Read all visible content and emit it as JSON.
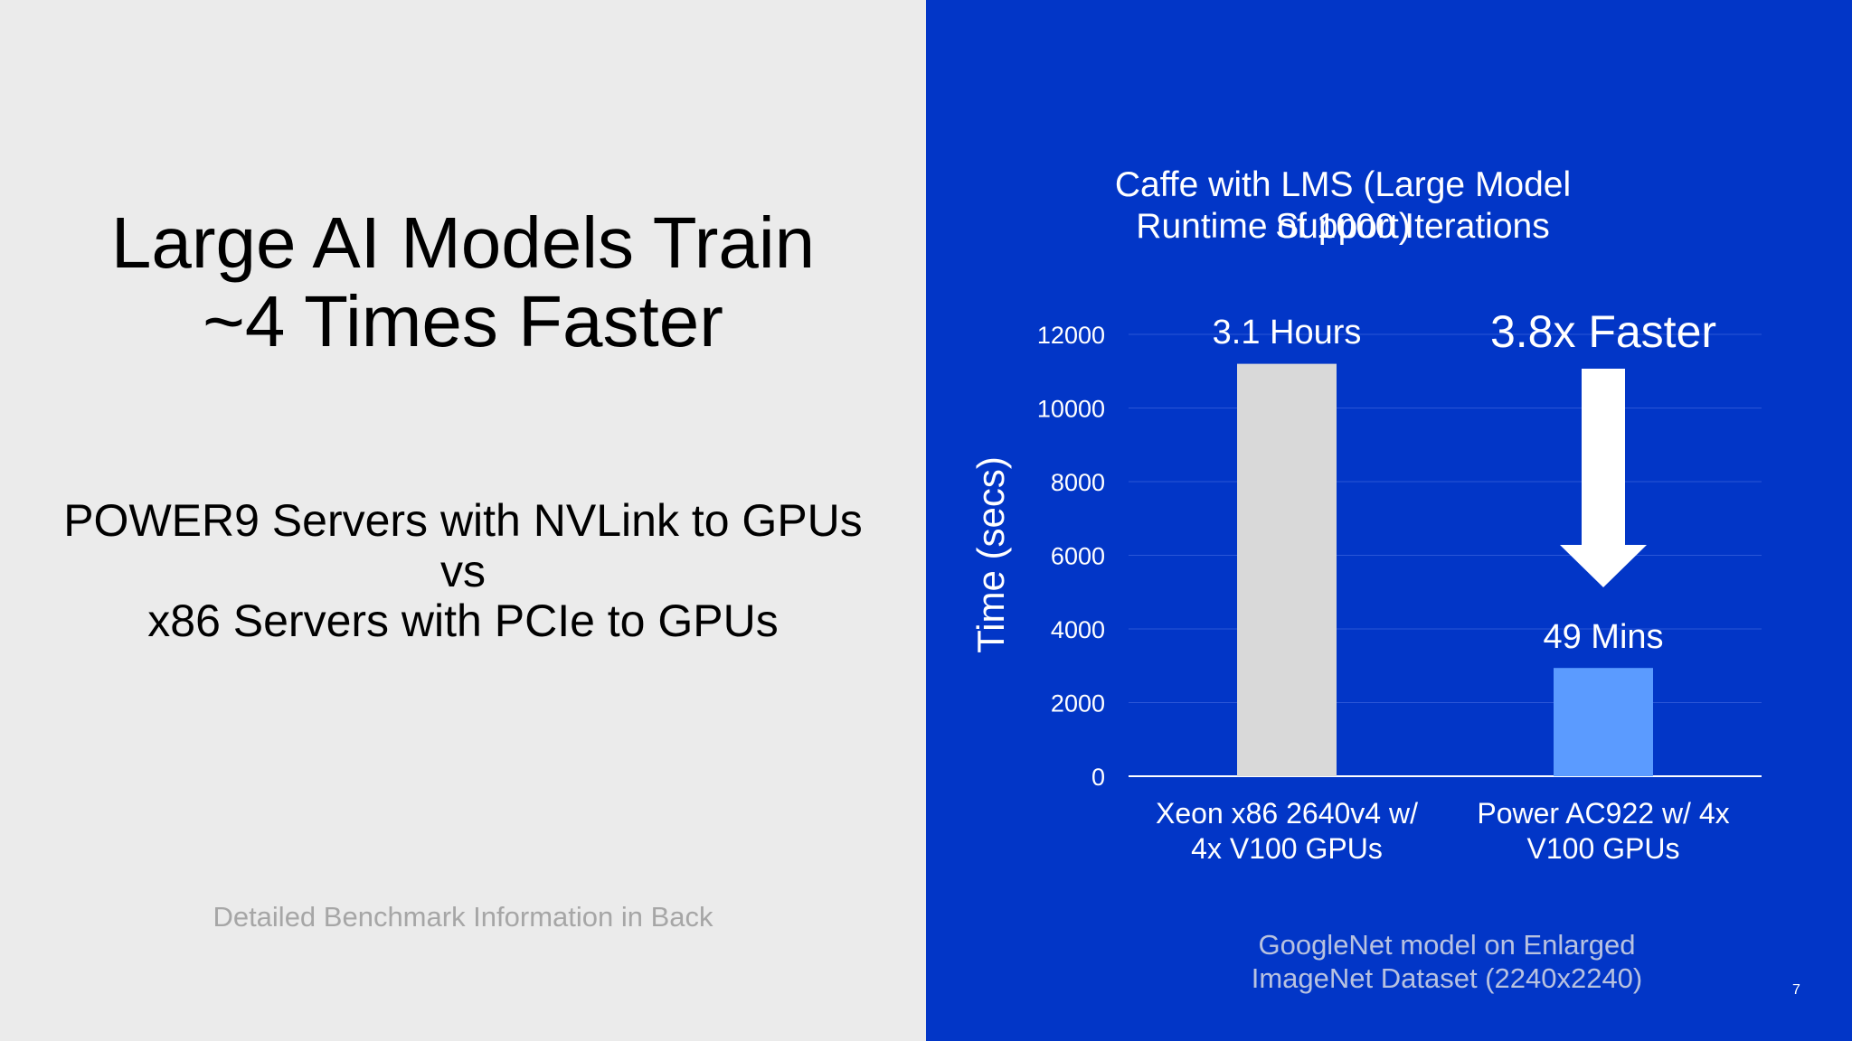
{
  "slide": {
    "title_line1": "Large AI Models Train",
    "title_line2": "~4 Times Faster",
    "subtitle_line1": "POWER9 Servers with NVLink to GPUs",
    "subtitle_line2": "vs",
    "subtitle_line3": "x86 Servers with PCIe to GPUs",
    "footnote_left": "Detailed Benchmark Information in Back",
    "footnote_right_line1": "GoogleNet model  on Enlarged",
    "footnote_right_line2": "ImageNet Dataset (2240x2240)",
    "page_number": "7"
  },
  "colors": {
    "left_background": "#ebebeb",
    "right_background": "#0236c7",
    "bar_xeon": "#d9d9d9",
    "bar_power": "#5b9bff",
    "arrow": "#ffffff"
  },
  "chart_data": {
    "type": "bar",
    "title_line1": "Caffe with LMS (Large Model Support)",
    "title_line2": "Runtime of 1000 Iterations",
    "ylabel": "Time (secs)",
    "ylim": [
      0,
      12000
    ],
    "yticks": [
      0,
      2000,
      4000,
      6000,
      8000,
      10000,
      12000
    ],
    "grid": true,
    "categories": [
      [
        "Xeon x86 2640v4 w/",
        "4x V100 GPUs"
      ],
      [
        "Power AC922 w/ 4x",
        "V100 GPUs"
      ]
    ],
    "values": [
      11200,
      2940
    ],
    "data_labels": [
      "3.1 Hours",
      "49 Mins"
    ],
    "annotation": "3.8x Faster",
    "annotation_icon": "down-arrow-icon"
  }
}
